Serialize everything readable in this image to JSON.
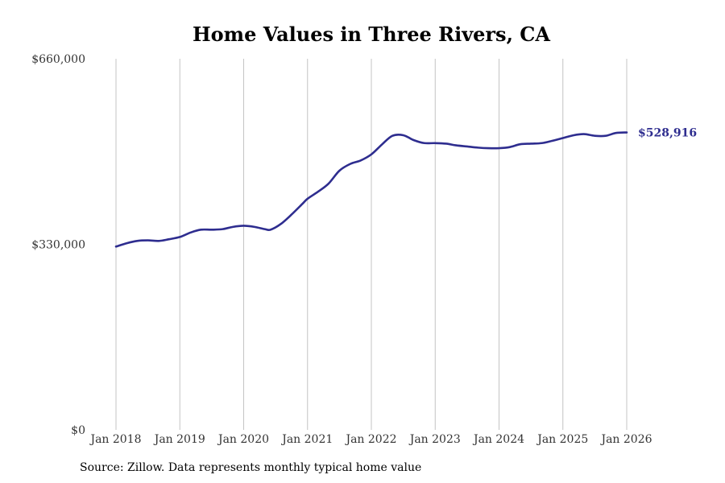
{
  "chart_data": {
    "type": "line",
    "title": "Home Values in Three Rivers, CA",
    "source": "Source: Zillow. Data represents monthly typical home value",
    "xlabel": "",
    "ylabel": "",
    "ylim": [
      0,
      660000
    ],
    "y_ticks": [
      {
        "value": 0,
        "label": "$0"
      },
      {
        "value": 330000,
        "label": "$330,000"
      },
      {
        "value": 660000,
        "label": "$660,000"
      }
    ],
    "x_ticks": [
      {
        "value": 2018.0,
        "label": "Jan 2018"
      },
      {
        "value": 2019.0,
        "label": "Jan 2019"
      },
      {
        "value": 2020.0,
        "label": "Jan 2020"
      },
      {
        "value": 2021.0,
        "label": "Jan 2021"
      },
      {
        "value": 2022.0,
        "label": "Jan 2022"
      },
      {
        "value": 2023.0,
        "label": "Jan 2023"
      },
      {
        "value": 2024.0,
        "label": "Jan 2024"
      },
      {
        "value": 2025.0,
        "label": "Jan 2025"
      },
      {
        "value": 2026.0,
        "label": "Jan 2026"
      }
    ],
    "xlim": [
      2018.0,
      2026.0
    ],
    "grid": "vertical",
    "line_color": "#2e2d8f",
    "end_label": "$528,916",
    "series": [
      {
        "name": "Typical home value",
        "points": [
          [
            2018.0,
            326000
          ],
          [
            2018.17,
            332000
          ],
          [
            2018.33,
            336000
          ],
          [
            2018.5,
            337000
          ],
          [
            2018.67,
            336000
          ],
          [
            2018.83,
            339000
          ],
          [
            2019.0,
            343000
          ],
          [
            2019.17,
            351000
          ],
          [
            2019.33,
            356000
          ],
          [
            2019.5,
            356000
          ],
          [
            2019.67,
            357000
          ],
          [
            2019.83,
            361000
          ],
          [
            2020.0,
            363000
          ],
          [
            2020.17,
            361000
          ],
          [
            2020.33,
            357000
          ],
          [
            2020.42,
            356000
          ],
          [
            2020.58,
            366000
          ],
          [
            2020.75,
            383000
          ],
          [
            2020.92,
            402000
          ],
          [
            2021.0,
            411000
          ],
          [
            2021.17,
            424000
          ],
          [
            2021.33,
            438000
          ],
          [
            2021.5,
            461000
          ],
          [
            2021.67,
            473000
          ],
          [
            2021.83,
            479000
          ],
          [
            2022.0,
            490000
          ],
          [
            2022.17,
            508000
          ],
          [
            2022.33,
            523000
          ],
          [
            2022.5,
            524000
          ],
          [
            2022.67,
            515000
          ],
          [
            2022.83,
            510000
          ],
          [
            2023.0,
            510000
          ],
          [
            2023.17,
            509000
          ],
          [
            2023.33,
            506000
          ],
          [
            2023.5,
            504000
          ],
          [
            2023.67,
            502000
          ],
          [
            2023.83,
            501000
          ],
          [
            2024.0,
            501000
          ],
          [
            2024.17,
            503000
          ],
          [
            2024.33,
            508000
          ],
          [
            2024.5,
            509000
          ],
          [
            2024.67,
            510000
          ],
          [
            2024.83,
            514000
          ],
          [
            2025.0,
            519000
          ],
          [
            2025.17,
            524000
          ],
          [
            2025.33,
            526000
          ],
          [
            2025.5,
            523000
          ],
          [
            2025.67,
            523000
          ],
          [
            2025.83,
            528000
          ],
          [
            2026.0,
            528916
          ]
        ]
      }
    ]
  }
}
